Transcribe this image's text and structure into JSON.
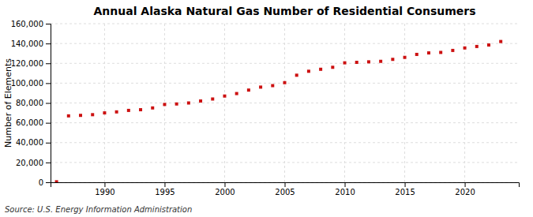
{
  "chart_data": {
    "type": "scatter",
    "title": "Annual Alaska Natural Gas Number of Residential Consumers",
    "ylabel": "Number of Elements",
    "source": "Source: U.S. Energy Information Administration",
    "x": [
      1986,
      1987,
      1988,
      1989,
      1990,
      1991,
      1992,
      1993,
      1994,
      1995,
      1996,
      1997,
      1998,
      1999,
      2000,
      2001,
      2002,
      2003,
      2004,
      2005,
      2006,
      2007,
      2008,
      2009,
      2010,
      2011,
      2012,
      2013,
      2014,
      2015,
      2016,
      2017,
      2018,
      2019,
      2020,
      2021,
      2022,
      2023
    ],
    "values": [
      500,
      67000,
      67500,
      68200,
      70000,
      71000,
      72500,
      73200,
      75000,
      78500,
      79000,
      80000,
      82000,
      84000,
      87000,
      89500,
      93000,
      96000,
      97500,
      100500,
      108000,
      112000,
      114000,
      116000,
      120500,
      121000,
      121500,
      122000,
      124000,
      126000,
      129000,
      130500,
      131000,
      133000,
      135500,
      137000,
      138500,
      142000
    ],
    "color": "#cc1111",
    "marker": "square",
    "grid": true,
    "xlim": [
      1985.5,
      2024.5
    ],
    "xticks": [
      1990,
      1995,
      2000,
      2005,
      2010,
      2015,
      2020
    ],
    "ylim": [
      0,
      160000
    ],
    "yticks": [
      0,
      {
        "value": 20000,
        "label": "20,000"
      },
      {
        "value": 40000,
        "label": "40,000"
      },
      {
        "value": 60000,
        "label": "60,000"
      },
      {
        "value": 80000,
        "label": "80,000"
      },
      {
        "value": 100000,
        "label": "100,000"
      },
      {
        "value": 120000,
        "label": "120,000"
      },
      {
        "value": 140000,
        "label": "140,000"
      },
      {
        "value": 160000,
        "label": "160,000"
      }
    ]
  }
}
